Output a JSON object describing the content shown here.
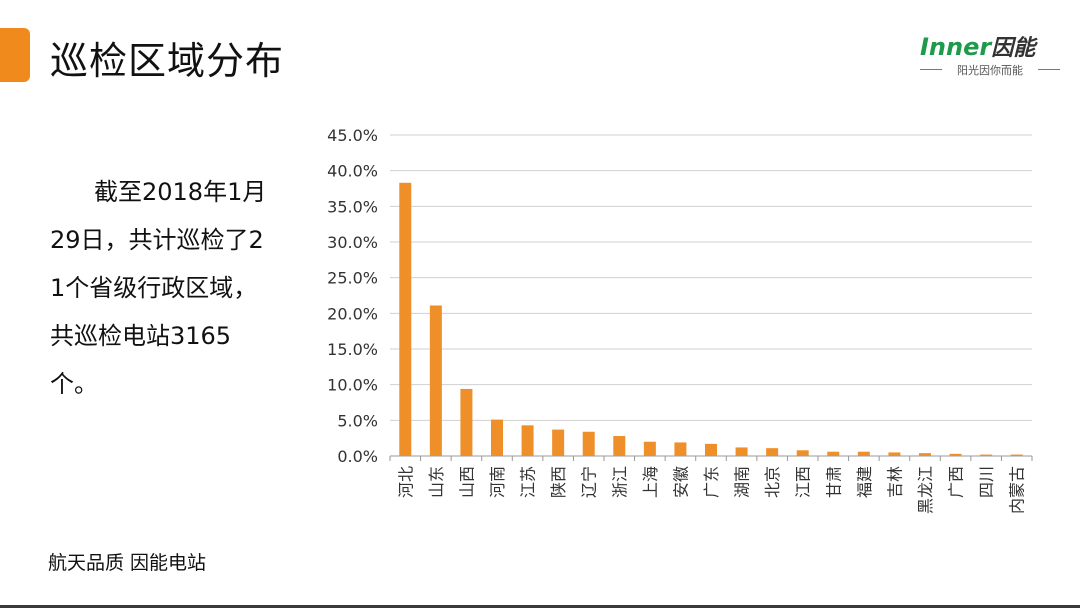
{
  "slide": {
    "title": "巡检区域分布",
    "summary": "截至2018年1月29日，共计巡检了21个省级行政区域，共巡检电站3165个。",
    "footer": "航天品质  因能电站"
  },
  "logo": {
    "latin": "Inner",
    "cn": "因能",
    "tagline": "阳光因你而能"
  },
  "colors": {
    "accent": "#f08a1c",
    "bar": "#ef8f2a",
    "brand_green": "#1e9a4b"
  },
  "chart_data": {
    "type": "bar",
    "categories": [
      "河北",
      "山东",
      "山西",
      "河南",
      "江苏",
      "陕西",
      "辽宁",
      "浙江",
      "上海",
      "安徽",
      "广东",
      "湖南",
      "北京",
      "江西",
      "甘肃",
      "福建",
      "吉林",
      "黑龙江",
      "广西",
      "四川",
      "内蒙古"
    ],
    "values": [
      38.3,
      21.1,
      9.4,
      5.1,
      4.3,
      3.7,
      3.4,
      2.8,
      2.0,
      1.9,
      1.7,
      1.2,
      1.1,
      0.8,
      0.6,
      0.6,
      0.5,
      0.4,
      0.3,
      0.2,
      0.2
    ],
    "yticks": [
      "0.0%",
      "5.0%",
      "10.0%",
      "15.0%",
      "20.0%",
      "25.0%",
      "30.0%",
      "35.0%",
      "40.0%",
      "45.0%"
    ],
    "ylim": [
      0,
      45
    ],
    "grid": true,
    "legend": false
  }
}
